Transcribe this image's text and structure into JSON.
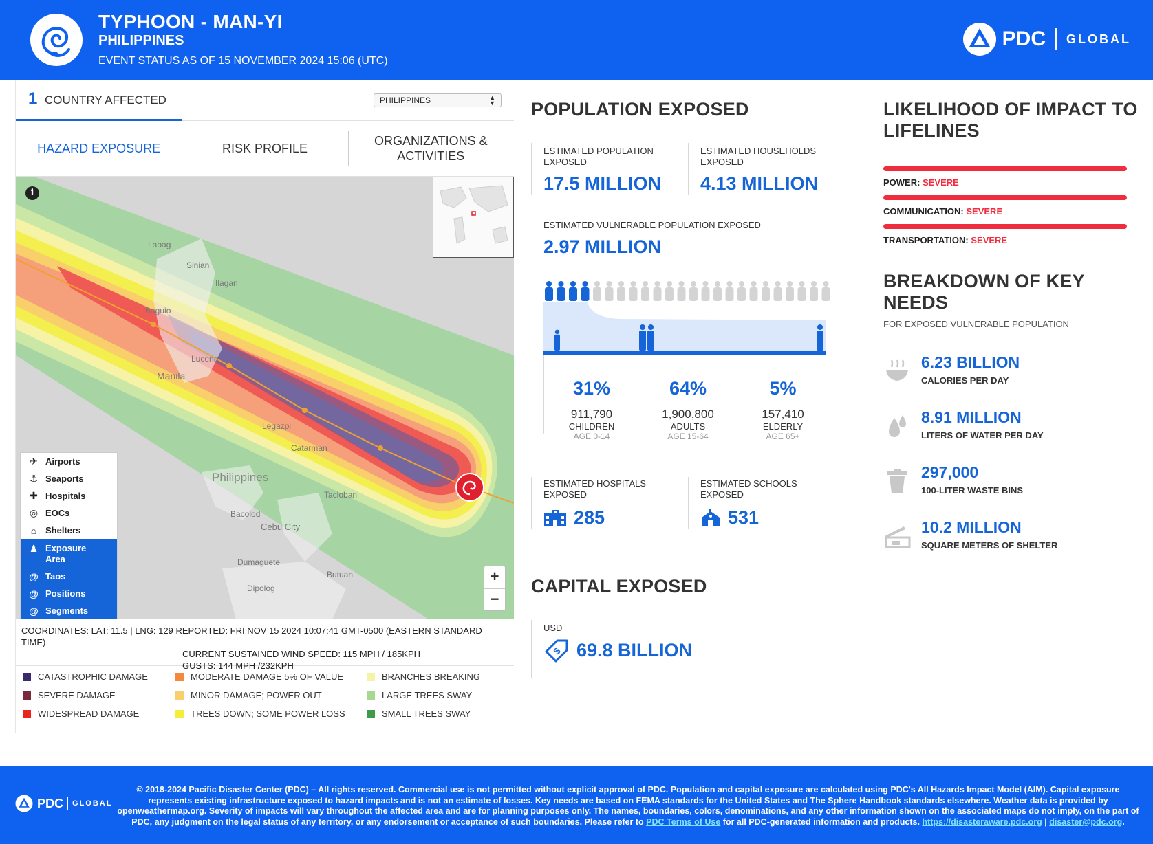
{
  "header": {
    "title": "TYPHOON - MAN-YI",
    "subtitle": "PHILIPPINES",
    "status": "EVENT STATUS AS OF 15 NOVEMBER 2024 15:06 (UTC)",
    "brand_pdc": "PDC",
    "brand_global": "GLOBAL"
  },
  "country": {
    "count": "1",
    "label": "COUNTRY AFFECTED",
    "selected": "PHILIPPINES"
  },
  "tabs": [
    {
      "label": "HAZARD EXPOSURE"
    },
    {
      "label": "RISK PROFILE"
    },
    {
      "label": "ORGANIZATIONS & ACTIVITIES"
    }
  ],
  "map": {
    "places": [
      "Laoag",
      "Sinian",
      "Ilagan",
      "Baguio",
      "Manila",
      "Lucena",
      "Legazpi",
      "Catarman",
      "Philippines",
      "Tacloban",
      "Bacolod",
      "Cebu City",
      "Dumaguete",
      "Butuan",
      "Dipolog"
    ],
    "layers": [
      {
        "label": "Airports",
        "icon": "✈"
      },
      {
        "label": "Seaports",
        "icon": "⚓"
      },
      {
        "label": "Hospitals",
        "icon": "✚"
      },
      {
        "label": "EOCs",
        "icon": "◎"
      },
      {
        "label": "Shelters",
        "icon": "⌂"
      },
      {
        "label": "Exposure Area",
        "icon": "♟"
      },
      {
        "label": "Taos",
        "icon": "@"
      },
      {
        "label": "Positions",
        "icon": "@"
      },
      {
        "label": "Segments",
        "icon": "@"
      }
    ],
    "zoom_in": "+",
    "zoom_out": "−",
    "info": "i"
  },
  "coords": {
    "line1": "COORDINATES: LAT: 11.5 | LNG: 129 REPORTED: FRI NOV 15 2024 10:07:41 GMT-0500 (EASTERN STANDARD TIME)",
    "line2": "CURRENT SUSTAINED WIND SPEED: 115 MPH / 185KPH",
    "line3": "GUSTS: 144 MPH /232KPH"
  },
  "legend": [
    {
      "label": "CATASTROPHIC DAMAGE",
      "color": "#3b2a6b"
    },
    {
      "label": "MODERATE DAMAGE 5% OF VALUE",
      "color": "#f5883a"
    },
    {
      "label": "BRANCHES BREAKING",
      "color": "#f6f3a6"
    },
    {
      "label": "SEVERE DAMAGE",
      "color": "#7a2a3a"
    },
    {
      "label": "MINOR DAMAGE; POWER OUT",
      "color": "#f8cf6a"
    },
    {
      "label": "LARGE TREES SWAY",
      "color": "#a6d88f"
    },
    {
      "label": "WIDESPREAD DAMAGE",
      "color": "#e8261f"
    },
    {
      "label": "TREES DOWN; SOME POWER LOSS",
      "color": "#f3ee3a"
    },
    {
      "label": "SMALL TREES SWAY",
      "color": "#3f9a4a"
    }
  ],
  "population": {
    "title": "POPULATION EXPOSED",
    "pop_label": "ESTIMATED POPULATION EXPOSED",
    "pop_value": "17.5 MILLION",
    "hh_label": "ESTIMATED HOUSEHOLDS EXPOSED",
    "hh_value": "4.13 MILLION",
    "vuln_label": "ESTIMATED VULNERABLE POPULATION EXPOSED",
    "vuln_value": "2.97 MILLION",
    "vulnerable_fraction": 0.17,
    "groups": [
      {
        "pct": "31%",
        "count": "911,790",
        "name": "CHILDREN",
        "range": "AGE 0-14"
      },
      {
        "pct": "64%",
        "count": "1,900,800",
        "name": "ADULTS",
        "range": "AGE 15-64"
      },
      {
        "pct": "5%",
        "count": "157,410",
        "name": "ELDERLY",
        "range": "AGE 65+"
      }
    ],
    "hosp_label": "ESTIMATED HOSPITALS EXPOSED",
    "hosp_value": "285",
    "school_label": "ESTIMATED SCHOOLS EXPOSED",
    "school_value": "531"
  },
  "capital": {
    "title": "CAPITAL EXPOSED",
    "currency": "USD",
    "value": "69.8 BILLION"
  },
  "lifelines": {
    "title": "LIKELIHOOD OF IMPACT TO LIFELINES",
    "items": [
      {
        "label": "POWER:",
        "level": "SEVERE"
      },
      {
        "label": "COMMUNICATION:",
        "level": "SEVERE"
      },
      {
        "label": "TRANSPORTATION:",
        "level": "SEVERE"
      }
    ]
  },
  "needs": {
    "title": "BREAKDOWN OF KEY NEEDS",
    "subtitle": "FOR EXPOSED VULNERABLE POPULATION",
    "items": [
      {
        "value": "6.23 BILLION",
        "label": "CALORIES PER DAY",
        "icon": "food-bowl-icon"
      },
      {
        "value": "8.91 MILLION",
        "label": "LITERS OF WATER PER DAY",
        "icon": "water-drops-icon"
      },
      {
        "value": "297,000",
        "label": "100-LITER WASTE BINS",
        "icon": "trash-bin-icon"
      },
      {
        "value": "10.2 MILLION",
        "label": "SQUARE METERS OF SHELTER",
        "icon": "shelter-icon"
      }
    ]
  },
  "footer": {
    "brand_pdc": "PDC",
    "brand_global": "GLOBAL",
    "text": "© 2018-2024 Pacific Disaster Center (PDC) – All rights reserved. Commercial use is not permitted without explicit approval of PDC. Population and capital exposure are calculated using PDC's All Hazards Impact Model (AIM). Capital exposure represents existing infrastructure exposed to hazard impacts and is not an estimate of losses. Key needs are based on FEMA standards for the United States and The Sphere Handbook standards elsewhere. Weather data is provided by openweathermap.org. Severity of impacts will vary throughout the affected area and are for planning purposes only. The names, boundaries, colors, denominations, and any other information shown on the associated maps do not imply, on the part of PDC, any judgment on the legal status of any territory, or any endorsement or acceptance of such boundaries. Please refer to",
    "terms_link": "PDC Terms of Use",
    "text2": "for all PDC-generated information and products.",
    "site_link": "https://disasteraware.pdc.org",
    "sep": "|",
    "email_link": "disaster@pdc.org",
    "end": "."
  },
  "colors": {
    "brand_blue": "#0f62f0",
    "accent_blue": "#1565d8",
    "severe_red": "#ef2d3f"
  }
}
